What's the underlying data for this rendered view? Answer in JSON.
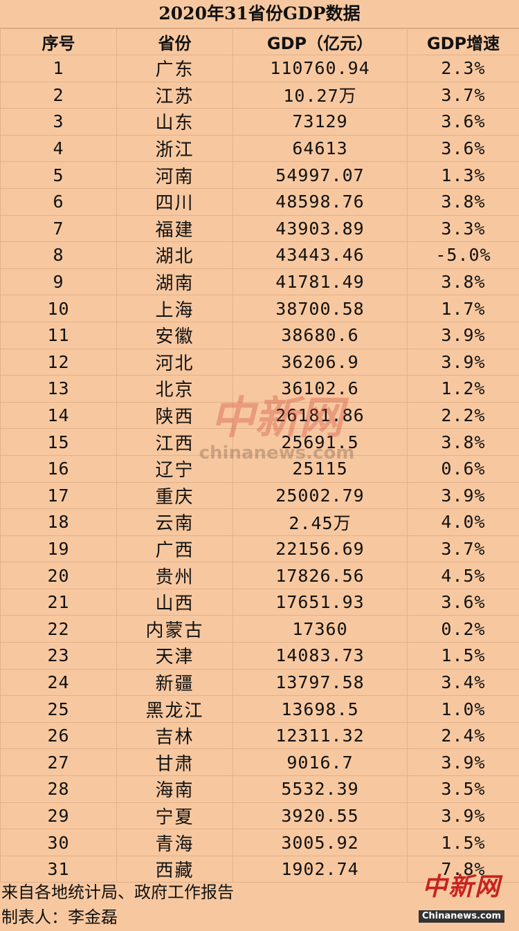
{
  "title": "2020年31省份GDP数据",
  "headers": [
    "序号",
    "省份",
    "GDP（亿元）",
    "GDP增速"
  ],
  "rows": [
    [
      "1",
      "广东",
      "110760.94",
      "2.3%"
    ],
    [
      "2",
      "江苏",
      "10.27万",
      "3.7%"
    ],
    [
      "3",
      "山东",
      "73129",
      "3.6%"
    ],
    [
      "4",
      "浙江",
      "64613",
      "3.6%"
    ],
    [
      "5",
      "河南",
      "54997.07",
      "1.3%"
    ],
    [
      "6",
      "四川",
      "48598.76",
      "3.8%"
    ],
    [
      "7",
      "福建",
      "43903.89",
      "3.3%"
    ],
    [
      "8",
      "湖北",
      "43443.46",
      "-5.0%"
    ],
    [
      "9",
      "湖南",
      "41781.49",
      "3.8%"
    ],
    [
      "10",
      "上海",
      "38700.58",
      "1.7%"
    ],
    [
      "11",
      "安徽",
      "38680.6",
      "3.9%"
    ],
    [
      "12",
      "河北",
      "36206.9",
      "3.9%"
    ],
    [
      "13",
      "北京",
      "36102.6",
      "1.2%"
    ],
    [
      "14",
      "陕西",
      "26181.86",
      "2.2%"
    ],
    [
      "15",
      "江西",
      "25691.5",
      "3.8%"
    ],
    [
      "16",
      "辽宁",
      "25115",
      "0.6%"
    ],
    [
      "17",
      "重庆",
      "25002.79",
      "3.9%"
    ],
    [
      "18",
      "云南",
      "2.45万",
      "4.0%"
    ],
    [
      "19",
      "广西",
      "22156.69",
      "3.7%"
    ],
    [
      "20",
      "贵州",
      "17826.56",
      "4.5%"
    ],
    [
      "21",
      "山西",
      "17651.93",
      "3.6%"
    ],
    [
      "22",
      "内蒙古",
      "17360",
      "0.2%"
    ],
    [
      "23",
      "天津",
      "14083.73",
      "1.5%"
    ],
    [
      "24",
      "新疆",
      "13797.58",
      "3.4%"
    ],
    [
      "25",
      "黑龙江",
      "13698.5",
      "1.0%"
    ],
    [
      "26",
      "吉林",
      "12311.32",
      "2.4%"
    ],
    [
      "27",
      "甘肃",
      "9016.7",
      "3.9%"
    ],
    [
      "28",
      "海南",
      "5532.39",
      "3.5%"
    ],
    [
      "29",
      "宁夏",
      "3920.55",
      "3.9%"
    ],
    [
      "30",
      "青海",
      "3005.92",
      "1.5%"
    ],
    [
      "31",
      "西藏",
      "1902.74",
      "7.8%"
    ]
  ],
  "footer": {
    "source": "来自各地统计局、政府工作报告",
    "maker": "制表人：李金磊"
  },
  "logo": {
    "mark": "中新网",
    "url": "Chinanews.com"
  },
  "watermark": {
    "mark": "中新网",
    "url": "chinanews.com"
  },
  "colors": {
    "background": "#f7c8a0",
    "grid_line": "#e0b08a",
    "logo_red": "#c8221e"
  }
}
